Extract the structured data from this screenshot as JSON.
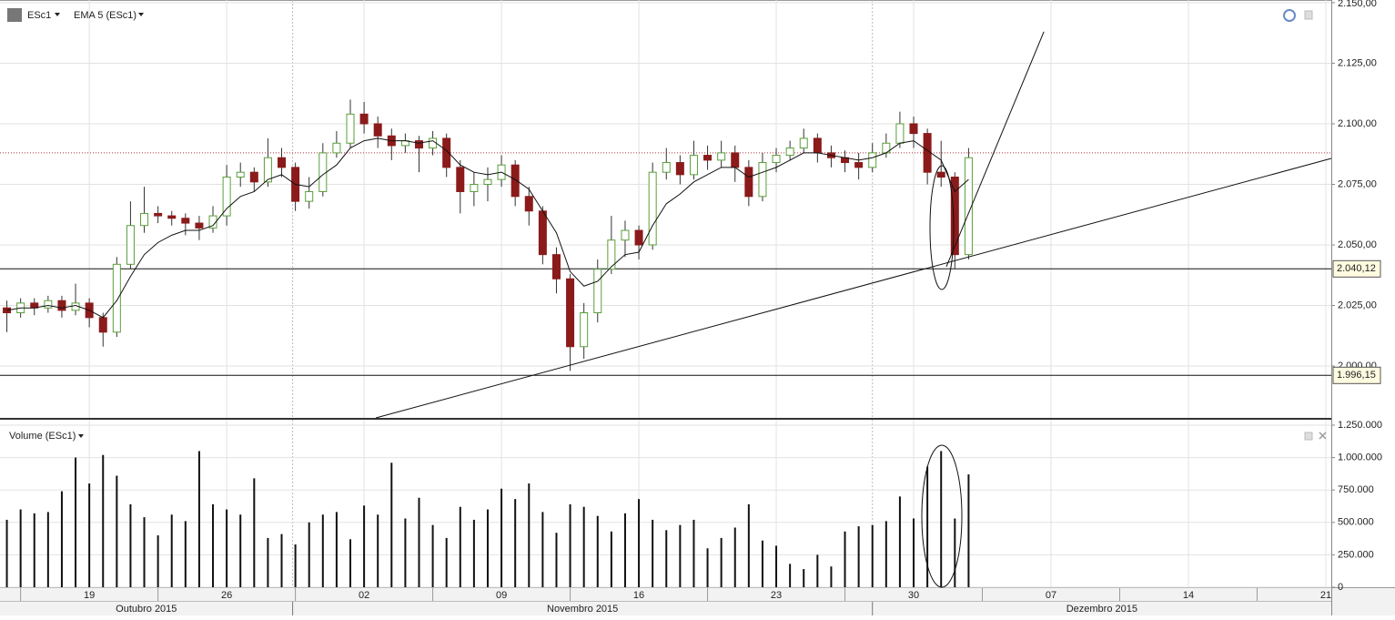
{
  "chart_data": [
    {
      "type": "candlestick",
      "title": "ESc1",
      "indicator": "EMA 5 (ESc1)",
      "x": [
        -3,
        -2.5,
        -2,
        -1.5,
        -1,
        -0.5,
        0,
        0.5,
        1,
        1.5,
        2,
        2.5,
        3,
        3.5,
        4,
        4.5,
        5,
        5.5,
        6,
        6.5,
        7,
        7.5,
        8,
        8.5,
        9,
        9.5,
        10,
        10.5,
        11,
        11.5,
        12,
        12.5,
        13,
        13.5,
        14,
        14.5,
        15,
        15.5,
        16,
        16.5,
        17,
        17.5,
        18,
        18.5,
        19,
        19.5,
        20,
        20.5,
        21,
        21.5,
        22,
        22.5,
        23,
        23.5,
        24,
        24.5,
        25,
        25.5,
        26,
        26.5,
        27,
        27.5,
        28,
        28.5,
        29,
        29.5,
        30,
        30.5,
        31,
        31.5,
        32
      ],
      "open": [
        2024,
        2022,
        2026,
        2024,
        2027,
        2023,
        2026,
        2020,
        2014,
        2042,
        2058,
        2063,
        2062,
        2061,
        2059,
        2057,
        2062,
        2078,
        2080,
        2076,
        2086,
        2082,
        2068,
        2072,
        2088,
        2092,
        2104,
        2100,
        2095,
        2091,
        2093,
        2090,
        2094,
        2082,
        2072,
        2075,
        2077,
        2083,
        2070,
        2064,
        2046,
        2036,
        2008,
        2022,
        2040,
        2052,
        2056,
        2050,
        2080,
        2084,
        2079,
        2087,
        2085,
        2088,
        2082,
        2070,
        2084,
        2087,
        2090,
        2094,
        2088,
        2086,
        2084,
        2082,
        2088,
        2092,
        2100,
        2096,
        2080,
        2078,
        2046
      ],
      "high": [
        2027,
        2028,
        2028,
        2029,
        2029,
        2034,
        2028,
        2022,
        2045,
        2068,
        2074,
        2066,
        2064,
        2063,
        2062,
        2066,
        2083,
        2084,
        2082,
        2094,
        2090,
        2084,
        2078,
        2092,
        2097,
        2110,
        2109,
        2103,
        2098,
        2096,
        2095,
        2097,
        2096,
        2085,
        2080,
        2082,
        2087,
        2085,
        2074,
        2066,
        2049,
        2038,
        2026,
        2044,
        2062,
        2060,
        2058,
        2084,
        2090,
        2087,
        2093,
        2091,
        2093,
        2091,
        2085,
        2088,
        2090,
        2093,
        2098,
        2096,
        2091,
        2089,
        2088,
        2092,
        2096,
        2105,
        2103,
        2098,
        2093,
        2080,
        2090
      ],
      "low": [
        2014,
        2020,
        2021,
        2022,
        2020,
        2021,
        2016,
        2008,
        2012,
        2040,
        2055,
        2059,
        2058,
        2054,
        2052,
        2055,
        2058,
        2074,
        2072,
        2074,
        2078,
        2064,
        2065,
        2070,
        2086,
        2090,
        2096,
        2090,
        2085,
        2088,
        2080,
        2087,
        2078,
        2063,
        2066,
        2068,
        2074,
        2066,
        2058,
        2042,
        2030,
        1998,
        2003,
        2018,
        2038,
        2045,
        2044,
        2048,
        2077,
        2075,
        2077,
        2081,
        2082,
        2076,
        2066,
        2068,
        2080,
        2085,
        2088,
        2084,
        2082,
        2080,
        2077,
        2080,
        2086,
        2090,
        2090,
        2075,
        2074,
        2040,
        2044
      ],
      "close": [
        2022,
        2026,
        2024,
        2027,
        2023,
        2026,
        2020,
        2014,
        2042,
        2058,
        2063,
        2062,
        2061,
        2059,
        2057,
        2062,
        2078,
        2080,
        2076,
        2086,
        2082,
        2068,
        2072,
        2088,
        2092,
        2104,
        2100,
        2095,
        2091,
        2093,
        2090,
        2094,
        2082,
        2072,
        2075,
        2077,
        2083,
        2070,
        2064,
        2046,
        2036,
        2008,
        2022,
        2040,
        2052,
        2056,
        2050,
        2080,
        2084,
        2079,
        2087,
        2085,
        2088,
        2082,
        2070,
        2084,
        2087,
        2090,
        2094,
        2088,
        2086,
        2084,
        2082,
        2088,
        2092,
        2100,
        2096,
        2080,
        2078,
        2046,
        2086
      ],
      "ema": [
        2023,
        2024,
        2024,
        2025,
        2024,
        2025,
        2023,
        2020,
        2027,
        2037,
        2046,
        2051,
        2054,
        2056,
        2056,
        2058,
        2065,
        2070,
        2072,
        2077,
        2079,
        2075,
        2074,
        2079,
        2083,
        2090,
        2093,
        2094,
        2093,
        2093,
        2092,
        2093,
        2089,
        2083,
        2080,
        2079,
        2080,
        2077,
        2073,
        2064,
        2055,
        2039,
        2033,
        2035,
        2041,
        2046,
        2047,
        2058,
        2067,
        2071,
        2076,
        2079,
        2082,
        2082,
        2078,
        2080,
        2082,
        2085,
        2088,
        2088,
        2087,
        2086,
        2085,
        2086,
        2088,
        2092,
        2093,
        2089,
        2085,
        2072,
        2077
      ],
      "up_color": "#5a9e3a",
      "down_color": "#8b1a1a",
      "ema_color": "#111111",
      "xlim": [
        -3.25,
        45.2
      ],
      "ylim": [
        1978.6,
        2151.1
      ],
      "yticks": [
        {
          "value": 2000,
          "label": "2.000,00"
        },
        {
          "value": 2025,
          "label": "2.025,00"
        },
        {
          "value": 2050,
          "label": "2.050,00"
        },
        {
          "value": 2075,
          "label": "2.075,00"
        },
        {
          "value": 2100,
          "label": "2.100,00"
        },
        {
          "value": 2125,
          "label": "2.125,00"
        },
        {
          "value": 2150,
          "label": "2.150,00"
        }
      ],
      "horizontal_lines": [
        {
          "value": 2040.12,
          "label": "2.040,12"
        },
        {
          "value": 1996.15,
          "label": "1.996,15"
        }
      ],
      "price_line": 2088,
      "trendlines": [
        {
          "x": [
            10.43,
            45.2
          ],
          "y": [
            1978.6,
            2085.7
          ]
        },
        {
          "x": [
            31.19,
            34.74
          ],
          "y": [
            2041,
            2138
          ]
        }
      ],
      "grid": true
    },
    {
      "type": "bar",
      "title": "Volume (ESc1)",
      "x": [
        -3,
        -2.5,
        -2,
        -1.5,
        -1,
        -0.5,
        0,
        0.5,
        1,
        1.5,
        2,
        2.5,
        3,
        3.5,
        4,
        4.5,
        5,
        5.5,
        6,
        6.5,
        7,
        7.5,
        8,
        8.5,
        9,
        9.5,
        10,
        10.5,
        11,
        11.5,
        12,
        12.5,
        13,
        13.5,
        14,
        14.5,
        15,
        15.5,
        16,
        16.5,
        17,
        17.5,
        18,
        18.5,
        19,
        19.5,
        20,
        20.5,
        21,
        21.5,
        22,
        22.5,
        23,
        23.5,
        24,
        24.5,
        25,
        25.5,
        26,
        26.5,
        27,
        27.5,
        28,
        28.5,
        29,
        29.5,
        30,
        30.5,
        31,
        31.5,
        32
      ],
      "values": [
        520000,
        600000,
        570000,
        580000,
        740000,
        1000000,
        800000,
        1020000,
        860000,
        640000,
        540000,
        400000,
        560000,
        510000,
        1050000,
        640000,
        600000,
        560000,
        840000,
        380000,
        410000,
        330000,
        500000,
        560000,
        580000,
        370000,
        630000,
        560000,
        960000,
        530000,
        690000,
        480000,
        380000,
        620000,
        520000,
        600000,
        760000,
        680000,
        800000,
        580000,
        420000,
        640000,
        620000,
        550000,
        430000,
        570000,
        680000,
        520000,
        440000,
        480000,
        520000,
        300000,
        380000,
        460000,
        640000,
        360000,
        320000,
        180000,
        140000,
        250000,
        160000,
        430000,
        470000,
        480000,
        510000,
        700000,
        530000,
        930000,
        1050000,
        530000,
        870000
      ],
      "color": "#111111",
      "xlim": [
        -3.25,
        45.2
      ],
      "ylim": [
        0,
        1292000
      ],
      "yticks": [
        0,
        {
          "value": 250000,
          "label": "250.000"
        },
        {
          "value": 500000,
          "label": "500.000"
        },
        {
          "value": 750000,
          "label": "750.000"
        },
        {
          "value": 1000000,
          "label": "1.000.000"
        },
        {
          "value": 1250000,
          "label": "1.250.000"
        }
      ],
      "xticks": [
        {
          "value": 0,
          "label": "19"
        },
        {
          "value": 5,
          "label": "26"
        },
        {
          "value": 10,
          "label": "02"
        },
        {
          "value": 15,
          "label": "09"
        },
        {
          "value": 20,
          "label": "16"
        },
        {
          "value": 25,
          "label": "23"
        },
        {
          "value": 30,
          "label": "30"
        },
        {
          "value": 35,
          "label": "07"
        },
        {
          "value": 40,
          "label": "14"
        },
        {
          "value": 45,
          "label": "21"
        }
      ],
      "month_bounds": [
        7.4,
        28.5
      ],
      "month_labels": [
        "Outubro 2015",
        "Novembro 2015",
        "Dezembro 2015"
      ],
      "grid": true
    }
  ]
}
